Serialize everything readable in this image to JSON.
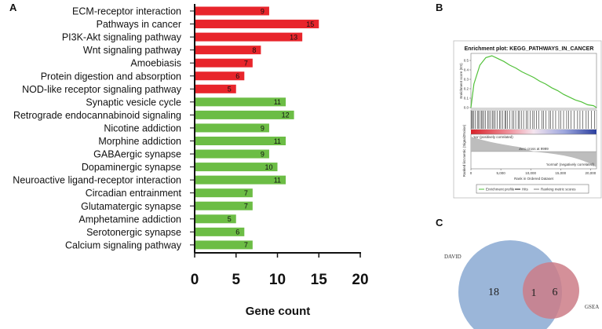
{
  "panels": {
    "a": "A",
    "b": "B",
    "c": "C"
  },
  "chart_data": [
    {
      "type": "bar",
      "orientation": "horizontal",
      "categories": [
        "ECM-receptor interaction",
        "Pathways in cancer",
        "PI3K-Akt signaling pathway",
        "Wnt signaling pathway",
        "Amoebiasis",
        "Protein digestion and absorption",
        "NOD-like receptor signaling pathway",
        "Synaptic vesicle cycle",
        "Retrograde endocannabinoid signaling",
        "Nicotine addiction",
        "Morphine addiction",
        "GABAergic synapse",
        "Dopaminergic synapse",
        "Neuroactive ligand-receptor interaction",
        "Circadian entrainment",
        "Glutamatergic synapse",
        "Amphetamine addiction",
        "Serotonergic synapse",
        "Calcium signaling pathway"
      ],
      "values": [
        9,
        15,
        13,
        8,
        7,
        6,
        5,
        11,
        12,
        9,
        11,
        9,
        10,
        11,
        7,
        7,
        5,
        6,
        7
      ],
      "bar_colors": [
        "#e8252b",
        "#e8252b",
        "#e8252b",
        "#e8252b",
        "#e8252b",
        "#e8252b",
        "#e8252b",
        "#6cbd45",
        "#6cbd45",
        "#6cbd45",
        "#6cbd45",
        "#6cbd45",
        "#6cbd45",
        "#6cbd45",
        "#6cbd45",
        "#6cbd45",
        "#6cbd45",
        "#6cbd45",
        "#6cbd45"
      ],
      "xlabel": "Gene count",
      "xlim": [
        0,
        20
      ],
      "xticks": [
        "0",
        "5",
        "10",
        "15",
        "20"
      ]
    },
    {
      "type": "line",
      "title": "Enrichment plot: KEGG_PATHWAYS_IN_CANCER",
      "ylabel": "Enrichment score (ES)",
      "ylabel2": "Ranked list metric (Signal2Noise)",
      "xlabel": "Rank in Ordered Dataset",
      "yticks": [
        "0.5",
        "0.4",
        "0.3",
        "0.2",
        "0.1",
        "0.0"
      ],
      "xticks": [
        "0",
        "5,000",
        "10,000",
        "15,000",
        "20,000"
      ],
      "annotations": [
        "'na' (positively correlated)",
        "Zero cross at 9999",
        "'normal' (negatively correlated)"
      ],
      "legend": [
        "Enrichment profile",
        "Hits",
        "Ranking metric scores"
      ],
      "enrichment_profile": {
        "x": [
          0,
          500,
          1500,
          2500,
          3500,
          4500,
          5500,
          6500,
          7500,
          8500,
          9500,
          10500,
          11500,
          12500,
          13500,
          14500,
          15500,
          16500,
          17500,
          18500,
          19500,
          20500,
          21000
        ],
        "y": [
          0.0,
          0.25,
          0.45,
          0.53,
          0.55,
          0.52,
          0.49,
          0.45,
          0.42,
          0.38,
          0.35,
          0.32,
          0.28,
          0.25,
          0.21,
          0.18,
          0.14,
          0.11,
          0.08,
          0.06,
          0.03,
          0.02,
          0.0
        ]
      }
    },
    {
      "type": "venn",
      "sets": [
        {
          "name": "DAVID",
          "count": 18
        },
        {
          "name": "GSEA",
          "count": 6
        }
      ],
      "intersection": 1
    }
  ]
}
